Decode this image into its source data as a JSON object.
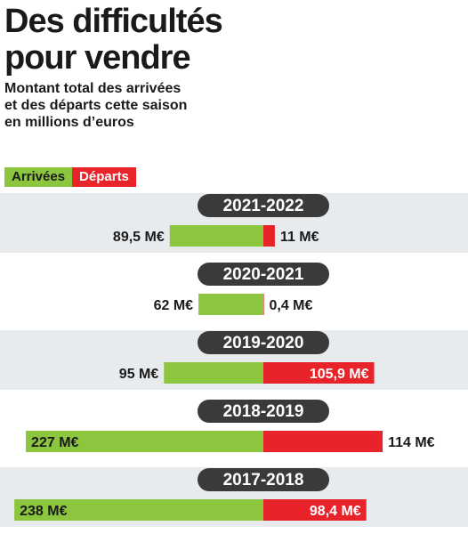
{
  "title_lines": [
    "Des difficultés",
    "pour vendre"
  ],
  "subtitle_lines": [
    "Montant total des arrivées",
    "et des départs cette saison",
    "en millions d’euros"
  ],
  "colors": {
    "arrivals": "#8cc63f",
    "departures": "#e8232a",
    "band": "#e8ebee",
    "pill": "#3a3a3a",
    "text": "#1a1a1a"
  },
  "legend": {
    "arrivals": "Arrivées",
    "departures": "Départs"
  },
  "chart_data": {
    "type": "bar",
    "orientation": "diverging-horizontal",
    "unit": "M€",
    "categories": [
      "2021-2022",
      "2020-2021",
      "2019-2020",
      "2018-2019",
      "2017-2018"
    ],
    "series": [
      {
        "name": "Arrivées",
        "values": [
          89.5,
          62,
          95,
          227,
          238
        ]
      },
      {
        "name": "Départs",
        "values": [
          11,
          0.4,
          105.9,
          114,
          98.4
        ]
      }
    ],
    "labels_arrivals": [
      "89,5 M€",
      "62 M€",
      "95 M€",
      "227 M€",
      "238 M€"
    ],
    "labels_departures": [
      "11 M€",
      "0,4 M€",
      "105,9 M€",
      "114 M€",
      "98,4 M€"
    ]
  }
}
